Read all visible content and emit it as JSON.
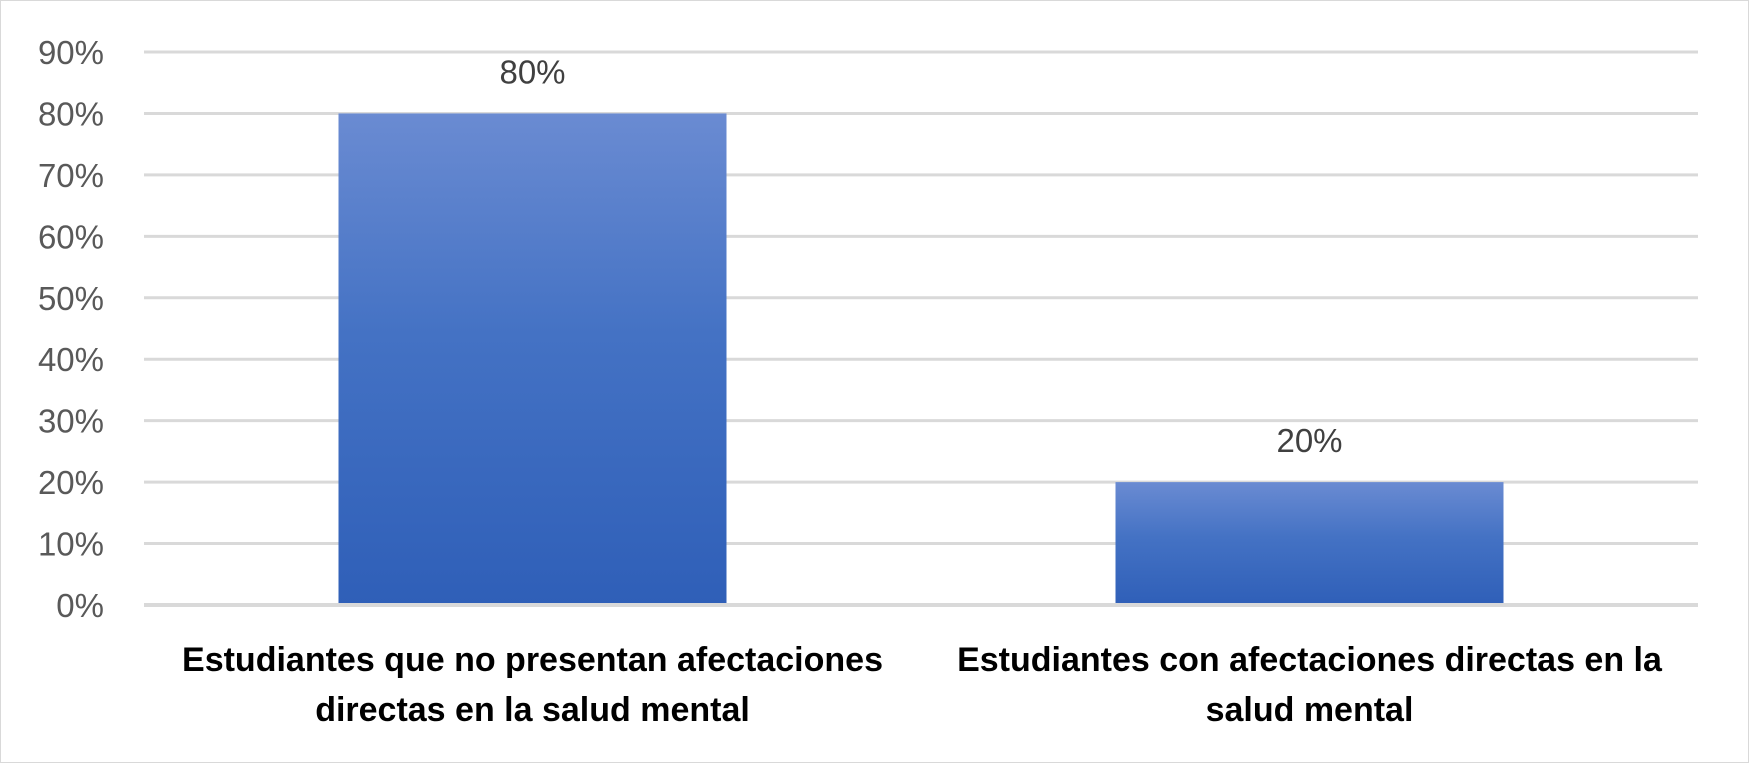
{
  "chart_data": {
    "type": "bar",
    "categories": [
      [
        "Estudiantes que no presentan afectaciones",
        "directas en la salud mental"
      ],
      [
        "Estudiantes con afectaciones directas en la",
        "salud mental"
      ]
    ],
    "values": [
      80,
      20
    ],
    "data_labels": [
      "80%",
      "20%"
    ],
    "y_ticks": [
      "0%",
      "10%",
      "20%",
      "30%",
      "40%",
      "50%",
      "60%",
      "70%",
      "80%",
      "90%"
    ],
    "ylim": [
      0,
      90
    ],
    "grid": true,
    "legend": "none",
    "title": "",
    "xlabel": "",
    "ylabel": "",
    "bar_color_top": "#6a8bd2",
    "bar_color_mid": "#4472c4",
    "bar_color_bottom": "#2f5fb8",
    "grid_color": "#d9d9d9",
    "axis_color": "#d9d9d9"
  }
}
